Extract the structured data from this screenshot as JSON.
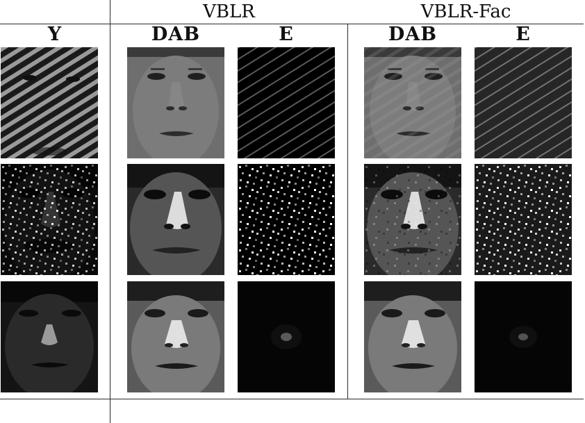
{
  "groups": {
    "vblr": "VBLR",
    "vblr_fac": "VBLR-Fac"
  },
  "columns": {
    "y": "Y",
    "vblr_dab": "DAB",
    "vblr_e": "E",
    "fac_dab": "DAB",
    "fac_e": "E"
  },
  "rows": [
    {
      "corruption": "stripes"
    },
    {
      "corruption": "salt-pepper"
    },
    {
      "corruption": "dark-illumination"
    }
  ],
  "colors": {
    "rule": "#2a2a2a",
    "background": "#ffffff"
  }
}
